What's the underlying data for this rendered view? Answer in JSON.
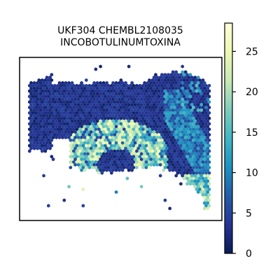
{
  "chart_data": {
    "type": "scatter",
    "title_lines": [
      "UKF304 CHEMBL2108035",
      "INCOBOTULINUMTOXINA"
    ],
    "marker": "hexagon",
    "colormap": "YlGnBu",
    "colorbar": {
      "min": 0,
      "max": 28.5,
      "ticks": [
        0,
        5,
        10,
        15,
        20,
        25
      ],
      "tick_labels": [
        "0",
        "5",
        "10",
        "15",
        "20",
        "25"
      ]
    },
    "axes": {
      "visible_ticks": false,
      "frame": true
    },
    "regions": [
      {
        "name": "background tissue",
        "value_range": [
          0,
          6
        ]
      },
      {
        "name": "lower arc band",
        "value_range": [
          12,
          27
        ]
      },
      {
        "name": "right edge band",
        "value_range": [
          5,
          14
        ]
      }
    ]
  }
}
